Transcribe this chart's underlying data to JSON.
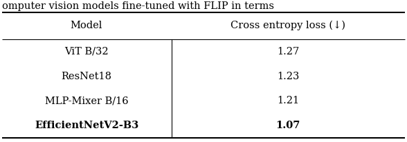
{
  "title_partial": "omputer vision models fine-tuned with FLIP in terms",
  "col1_header": "Model",
  "col2_header": "Cross entropy loss (↓)",
  "rows": [
    [
      "ViT B/32",
      "1.27",
      false
    ],
    [
      "ResNet18",
      "1.23",
      false
    ],
    [
      "MLP-Mixer B/16",
      "1.21",
      false
    ],
    [
      "EfficientNetV2-B3",
      "1.07",
      true
    ]
  ],
  "font_size": 10.5,
  "background_color": "#ffffff",
  "figsize": [
    5.88,
    2.06
  ],
  "dpi": 100
}
